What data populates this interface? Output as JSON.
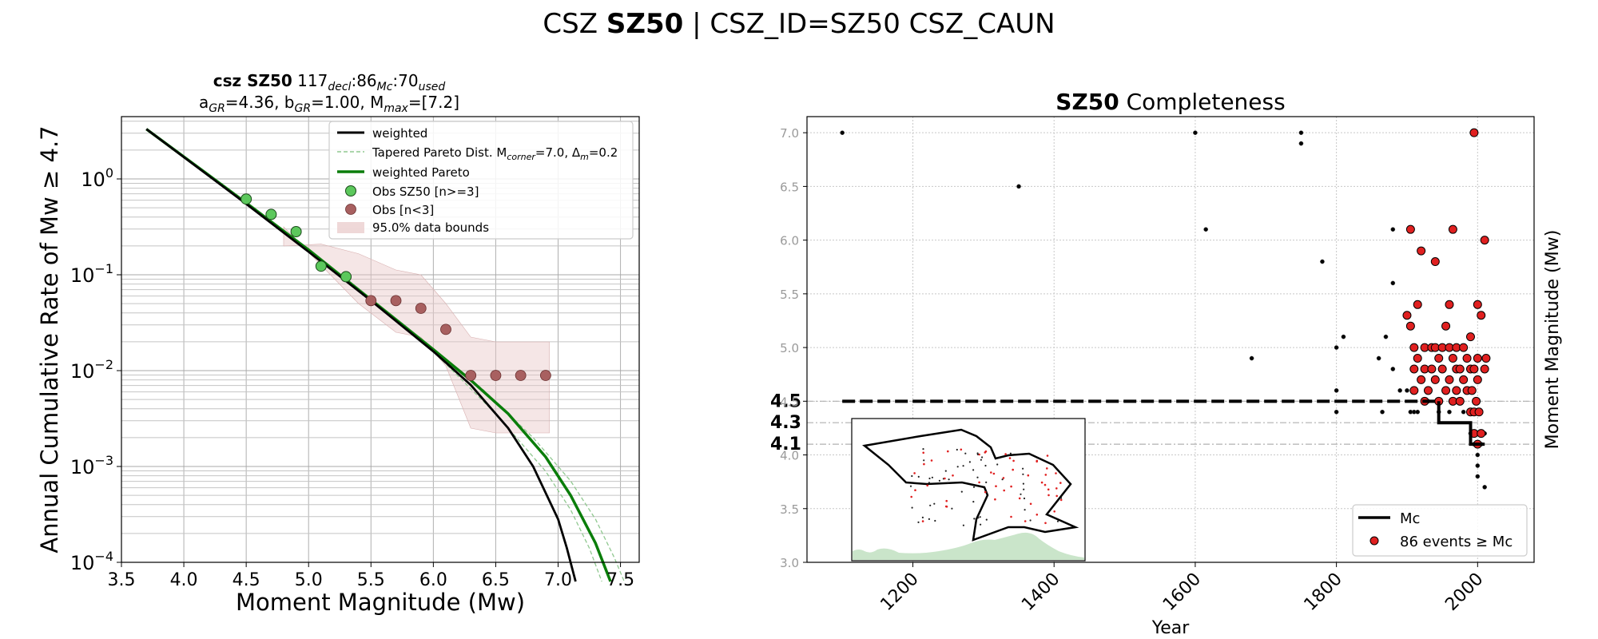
{
  "figure": {
    "title_plain": "CSZ ",
    "title_bold": "SZ50",
    "title_rest": " | CSZ_ID=SZ50 CSZ_CAUN"
  },
  "chart_data": [
    {
      "type": "line",
      "title_line1": {
        "bold": "csz SZ50",
        "text1": "  117",
        "sub1": "decl",
        "text2": ":86",
        "sub2": "Mc",
        "text3": ":70",
        "sub3": "used"
      },
      "title_line2": {
        "a": "a",
        "a_sub": "GR",
        "a_val": "=4.36,  b",
        "b_sub": "GR",
        "b_val": "=1.00, M",
        "m_sub": "max",
        "m_val": "=[7.2]"
      },
      "xlabel": "Moment Magnitude (Mw)",
      "ylabel": "Annual Cumulative Rate of Mw  ≥  4.7",
      "xlim": [
        3.5,
        7.65
      ],
      "ylim_log10": [
        -4,
        0.65
      ],
      "yscale": "log",
      "xticks": [
        "3.5",
        "4.0",
        "4.5",
        "5.0",
        "5.5",
        "6.0",
        "6.5",
        "7.0",
        "7.5"
      ],
      "yticks": [
        {
          "base": "10",
          "exp": "0",
          "log": 0
        },
        {
          "base": "10",
          "exp": "−1",
          "log": -1
        },
        {
          "base": "10",
          "exp": "−2",
          "log": -2
        },
        {
          "base": "10",
          "exp": "−3",
          "log": -3
        },
        {
          "base": "10",
          "exp": "−4",
          "log": -4
        }
      ],
      "grid": true,
      "legend_position": "top-right",
      "legend": {
        "weighted": "weighted",
        "tapered": "Tapered Pareto Dist. M",
        "tapered_sub1": "corner",
        "tapered_mid": "=7.0, Δ",
        "tapered_sub2": "m",
        "tapered_end": "=0.2",
        "weighted_pareto": "weighted Pareto",
        "obs_main": "Obs SZ50 [n>=3]",
        "obs_low": "Obs [n<3]",
        "bounds": "95.0% data bounds"
      },
      "series": {
        "weighted": [
          [
            3.7,
            0.52
          ],
          [
            4.5,
            -0.26
          ],
          [
            5.0,
            -0.76
          ],
          [
            5.5,
            -1.27
          ],
          [
            6.0,
            -1.8
          ],
          [
            6.3,
            -2.15
          ],
          [
            6.6,
            -2.6
          ],
          [
            6.8,
            -3.0
          ],
          [
            7.0,
            -3.55
          ],
          [
            7.07,
            -3.85
          ],
          [
            7.14,
            -4.2
          ]
        ],
        "weighted_pareto": [
          [
            3.7,
            0.52
          ],
          [
            4.5,
            -0.25
          ],
          [
            5.0,
            -0.74
          ],
          [
            5.5,
            -1.26
          ],
          [
            6.0,
            -1.78
          ],
          [
            6.3,
            -2.1
          ],
          [
            6.6,
            -2.45
          ],
          [
            6.9,
            -2.9
          ],
          [
            7.1,
            -3.3
          ],
          [
            7.3,
            -3.8
          ],
          [
            7.42,
            -4.2
          ]
        ],
        "tapered_upper": [
          [
            6.0,
            -1.77
          ],
          [
            6.4,
            -2.2
          ],
          [
            6.8,
            -2.7
          ],
          [
            7.1,
            -3.15
          ],
          [
            7.3,
            -3.55
          ],
          [
            7.45,
            -3.95
          ],
          [
            7.53,
            -4.2
          ]
        ],
        "tapered_lower": [
          [
            6.0,
            -1.8
          ],
          [
            6.5,
            -2.45
          ],
          [
            6.9,
            -3.05
          ],
          [
            7.1,
            -3.45
          ],
          [
            7.25,
            -3.85
          ],
          [
            7.35,
            -4.2
          ]
        ],
        "bounds_upper": [
          [
            4.8,
            -0.7
          ],
          [
            5.1,
            -0.68
          ],
          [
            5.4,
            -0.78
          ],
          [
            5.7,
            -0.95
          ],
          [
            5.9,
            -1.0
          ],
          [
            6.1,
            -1.3
          ],
          [
            6.3,
            -1.65
          ],
          [
            6.5,
            -1.7
          ],
          [
            6.93,
            -1.7
          ]
        ],
        "bounds_lower": [
          [
            4.8,
            -0.5
          ],
          [
            5.1,
            -0.9
          ],
          [
            5.4,
            -1.3
          ],
          [
            5.7,
            -1.6
          ],
          [
            5.9,
            -1.65
          ],
          [
            6.1,
            -1.95
          ],
          [
            6.3,
            -2.6
          ],
          [
            6.5,
            -2.65
          ],
          [
            6.93,
            -2.65
          ]
        ],
        "obs_main": [
          [
            4.5,
            -0.21
          ],
          [
            4.7,
            -0.37
          ],
          [
            4.9,
            -0.55
          ],
          [
            5.1,
            -0.91
          ],
          [
            5.3,
            -1.02
          ]
        ],
        "obs_low": [
          [
            5.5,
            -1.27
          ],
          [
            5.7,
            -1.27
          ],
          [
            5.9,
            -1.35
          ],
          [
            6.1,
            -1.57
          ],
          [
            6.3,
            -2.05
          ],
          [
            6.5,
            -2.05
          ],
          [
            6.7,
            -2.05
          ],
          [
            6.9,
            -2.05
          ]
        ]
      }
    },
    {
      "type": "scatter",
      "title_bold": "SZ50",
      "title_rest": " Completeness",
      "xlabel": "Year",
      "ylabel": "Moment Magnitude (Mw)",
      "xlim": [
        1050,
        2080
      ],
      "ylim": [
        3.0,
        7.15
      ],
      "xticks": [
        "1200",
        "1400",
        "1600",
        "1800",
        "2000"
      ],
      "yticks": [
        "3.0",
        "3.5",
        "4.0",
        "4.5",
        "5.0",
        "5.5",
        "6.0",
        "6.5",
        "7.0"
      ],
      "grid": true,
      "legend_position": "bottom-right",
      "legend": {
        "mc": "Mc",
        "events": "86 events  ≥  Mc"
      },
      "mc_labels": [
        {
          "text": "4.5",
          "value": 4.5
        },
        {
          "text": "4.3",
          "value": 4.3
        },
        {
          "text": "4.1",
          "value": 4.1
        }
      ],
      "mc_step": [
        [
          1100,
          4.5
        ],
        [
          1945,
          4.5
        ],
        [
          1945,
          4.3
        ],
        [
          1990,
          4.3
        ],
        [
          1990,
          4.1
        ],
        [
          2010,
          4.1
        ]
      ],
      "black_events": [
        [
          1100,
          7.0
        ],
        [
          1350,
          6.5
        ],
        [
          1600,
          7.0
        ],
        [
          1615,
          6.1
        ],
        [
          1680,
          4.9
        ],
        [
          1750,
          7.0
        ],
        [
          1750,
          6.9
        ],
        [
          1780,
          5.8
        ],
        [
          1800,
          5.0
        ],
        [
          1800,
          4.6
        ],
        [
          1800,
          4.4
        ],
        [
          1810,
          5.1
        ],
        [
          1860,
          4.9
        ],
        [
          1865,
          4.4
        ],
        [
          1870,
          5.1
        ],
        [
          1880,
          6.1
        ],
        [
          1880,
          5.6
        ],
        [
          1880,
          4.8
        ],
        [
          1890,
          4.6
        ],
        [
          1900,
          4.6
        ],
        [
          1905,
          4.4
        ],
        [
          1910,
          4.4
        ],
        [
          1915,
          4.4
        ],
        [
          1930,
          4.5
        ],
        [
          1945,
          4.4
        ],
        [
          1960,
          4.4
        ],
        [
          1980,
          4.4
        ],
        [
          1990,
          4.2
        ],
        [
          1995,
          4.1
        ],
        [
          2000,
          4.0
        ],
        [
          2000,
          3.9
        ],
        [
          2000,
          3.8
        ],
        [
          2005,
          4.1
        ],
        [
          2010,
          3.7
        ],
        [
          2000,
          4.2
        ],
        [
          2010,
          4.2
        ]
      ],
      "red_events": [
        [
          1900,
          5.3
        ],
        [
          1905,
          5.2
        ],
        [
          1905,
          6.1
        ],
        [
          1910,
          5.0
        ],
        [
          1910,
          4.8
        ],
        [
          1910,
          4.6
        ],
        [
          1915,
          5.4
        ],
        [
          1915,
          4.9
        ],
        [
          1920,
          5.9
        ],
        [
          1920,
          4.7
        ],
        [
          1925,
          5.0
        ],
        [
          1925,
          4.8
        ],
        [
          1925,
          4.5
        ],
        [
          1930,
          4.6
        ],
        [
          1935,
          5.0
        ],
        [
          1935,
          4.8
        ],
        [
          1940,
          5.8
        ],
        [
          1940,
          5.0
        ],
        [
          1940,
          4.7
        ],
        [
          1945,
          4.9
        ],
        [
          1945,
          4.5
        ],
        [
          1950,
          5.0
        ],
        [
          1950,
          4.8
        ],
        [
          1955,
          5.2
        ],
        [
          1955,
          4.6
        ],
        [
          1960,
          5.4
        ],
        [
          1960,
          5.0
        ],
        [
          1960,
          4.7
        ],
        [
          1965,
          6.1
        ],
        [
          1965,
          4.9
        ],
        [
          1965,
          4.5
        ],
        [
          1970,
          5.0
        ],
        [
          1970,
          4.8
        ],
        [
          1970,
          4.6
        ],
        [
          1975,
          4.8
        ],
        [
          1975,
          4.5
        ],
        [
          1980,
          5.0
        ],
        [
          1980,
          4.7
        ],
        [
          1985,
          4.9
        ],
        [
          1985,
          4.6
        ],
        [
          1990,
          5.1
        ],
        [
          1990,
          4.8
        ],
        [
          1990,
          4.4
        ],
        [
          1992,
          4.6
        ],
        [
          1995,
          7.0
        ],
        [
          1995,
          4.8
        ],
        [
          1995,
          4.4
        ],
        [
          2000,
          5.4
        ],
        [
          2000,
          4.9
        ],
        [
          2000,
          4.7
        ],
        [
          2005,
          5.3
        ],
        [
          2010,
          6.0
        ],
        [
          2010,
          4.8
        ],
        [
          2012,
          4.9
        ],
        [
          1998,
          4.5
        ],
        [
          2002,
          4.4
        ],
        [
          2000,
          4.1
        ],
        [
          1995,
          4.2
        ],
        [
          2005,
          4.2
        ]
      ]
    }
  ]
}
